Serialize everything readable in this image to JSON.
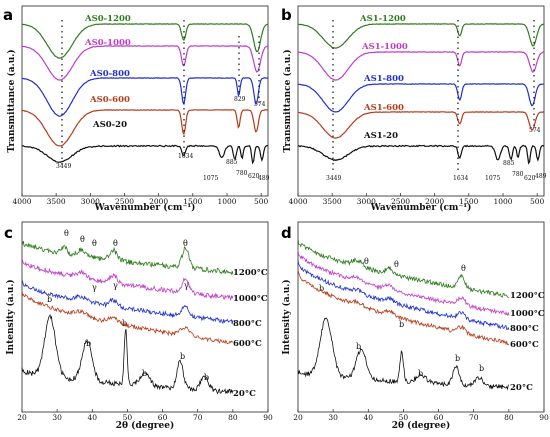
{
  "chart_data": [
    {
      "panel": "a",
      "type": "line",
      "xlabel": "Wavenumber (cm⁻¹)",
      "ylabel": "Transmittance (a.u.)",
      "xlim": [
        4000,
        400
      ],
      "x_ticks": [
        "4000",
        "3500",
        "3000",
        "2500",
        "2000",
        "1500",
        "1000",
        "500"
      ],
      "series": [
        {
          "name": "AS0-1200",
          "color": "#2e7d1e"
        },
        {
          "name": "AS0-1000",
          "color": "#c03cc8"
        },
        {
          "name": "AS0-800",
          "color": "#1f2fd0"
        },
        {
          "name": "AS0-600",
          "color": "#b83a1b"
        },
        {
          "name": "AS0-20",
          "color": "#111111"
        }
      ],
      "annotations": [
        "3449",
        "1634",
        "1075",
        "885",
        "829",
        "780",
        "620",
        "574",
        "489"
      ]
    },
    {
      "panel": "b",
      "type": "line",
      "xlabel": "Wavenumber (cm⁻¹)",
      "ylabel": "Transmittance (a.u.)",
      "xlim": [
        4000,
        400
      ],
      "x_ticks": [
        "4000",
        "3500",
        "3000",
        "2500",
        "2000",
        "1500",
        "1000",
        "500"
      ],
      "series": [
        {
          "name": "AS1-1200",
          "color": "#2e7d1e"
        },
        {
          "name": "AS1-1000",
          "color": "#c03cc8"
        },
        {
          "name": "AS1-800",
          "color": "#1f2fd0"
        },
        {
          "name": "AS1-600",
          "color": "#b83a1b"
        },
        {
          "name": "AS1-20",
          "color": "#111111"
        }
      ],
      "annotations": [
        "3449",
        "1634",
        "1075",
        "885",
        "780",
        "620",
        "574",
        "489"
      ]
    },
    {
      "panel": "c",
      "type": "line",
      "xlabel": "2θ (degree)",
      "ylabel": "Intensity (a.u.)",
      "xlim": [
        20,
        90
      ],
      "x_ticks": [
        "20",
        "30",
        "40",
        "50",
        "60",
        "70",
        "80",
        "90"
      ],
      "series": [
        {
          "name": "1200°C",
          "color": "#2e7d1e"
        },
        {
          "name": "1000°C",
          "color": "#c03cc8"
        },
        {
          "name": "800°C",
          "color": "#1f2fd0"
        },
        {
          "name": "600°C",
          "color": "#b83a1b"
        },
        {
          "name": "20°C",
          "color": "#111111"
        }
      ],
      "phase_marks": [
        "θ",
        "θ",
        "θ",
        "θ",
        "θ",
        "γ",
        "γ",
        "γ",
        "b",
        "b",
        "b",
        "b",
        "b",
        "b"
      ]
    },
    {
      "panel": "d",
      "type": "line",
      "xlabel": "2θ (degree)",
      "ylabel": "Intensity (a.u.)",
      "xlim": [
        20,
        90
      ],
      "x_ticks": [
        "20",
        "30",
        "40",
        "50",
        "60",
        "70",
        "80",
        "90"
      ],
      "series": [
        {
          "name": "1200°C",
          "color": "#2e7d1e"
        },
        {
          "name": "1000°C",
          "color": "#c03cc8"
        },
        {
          "name": "800°C",
          "color": "#1f2fd0"
        },
        {
          "name": "600°C",
          "color": "#b83a1b"
        },
        {
          "name": "20°C",
          "color": "#111111"
        }
      ],
      "phase_marks": [
        "θ",
        "θ",
        "θ",
        "b",
        "b",
        "b",
        "b",
        "b",
        "b"
      ]
    }
  ]
}
